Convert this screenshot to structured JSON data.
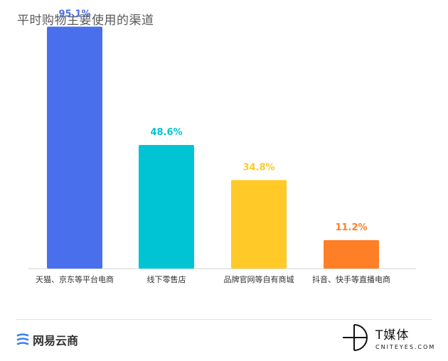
{
  "chart_data": {
    "type": "bar",
    "title": "平时购物主要使用的渠道",
    "categories": [
      "天猫、京东等平台电商",
      "线下零售店",
      "品牌官网等自有商城",
      "抖音、快手等直播电商"
    ],
    "values": [
      95.1,
      48.6,
      34.8,
      11.2
    ],
    "data_labels": [
      "95.1%",
      "48.6%",
      "34.8%",
      "11.2%"
    ],
    "colors": [
      "#4A6FED",
      "#00C4D4",
      "#FFCA28",
      "#FF7F27"
    ],
    "ylim": [
      0,
      100
    ],
    "grid": false,
    "legend": "none"
  },
  "footer": {
    "left_brand": "网易云商",
    "right_brand": "T媒体",
    "right_domain": "CNITEYES.COM"
  }
}
